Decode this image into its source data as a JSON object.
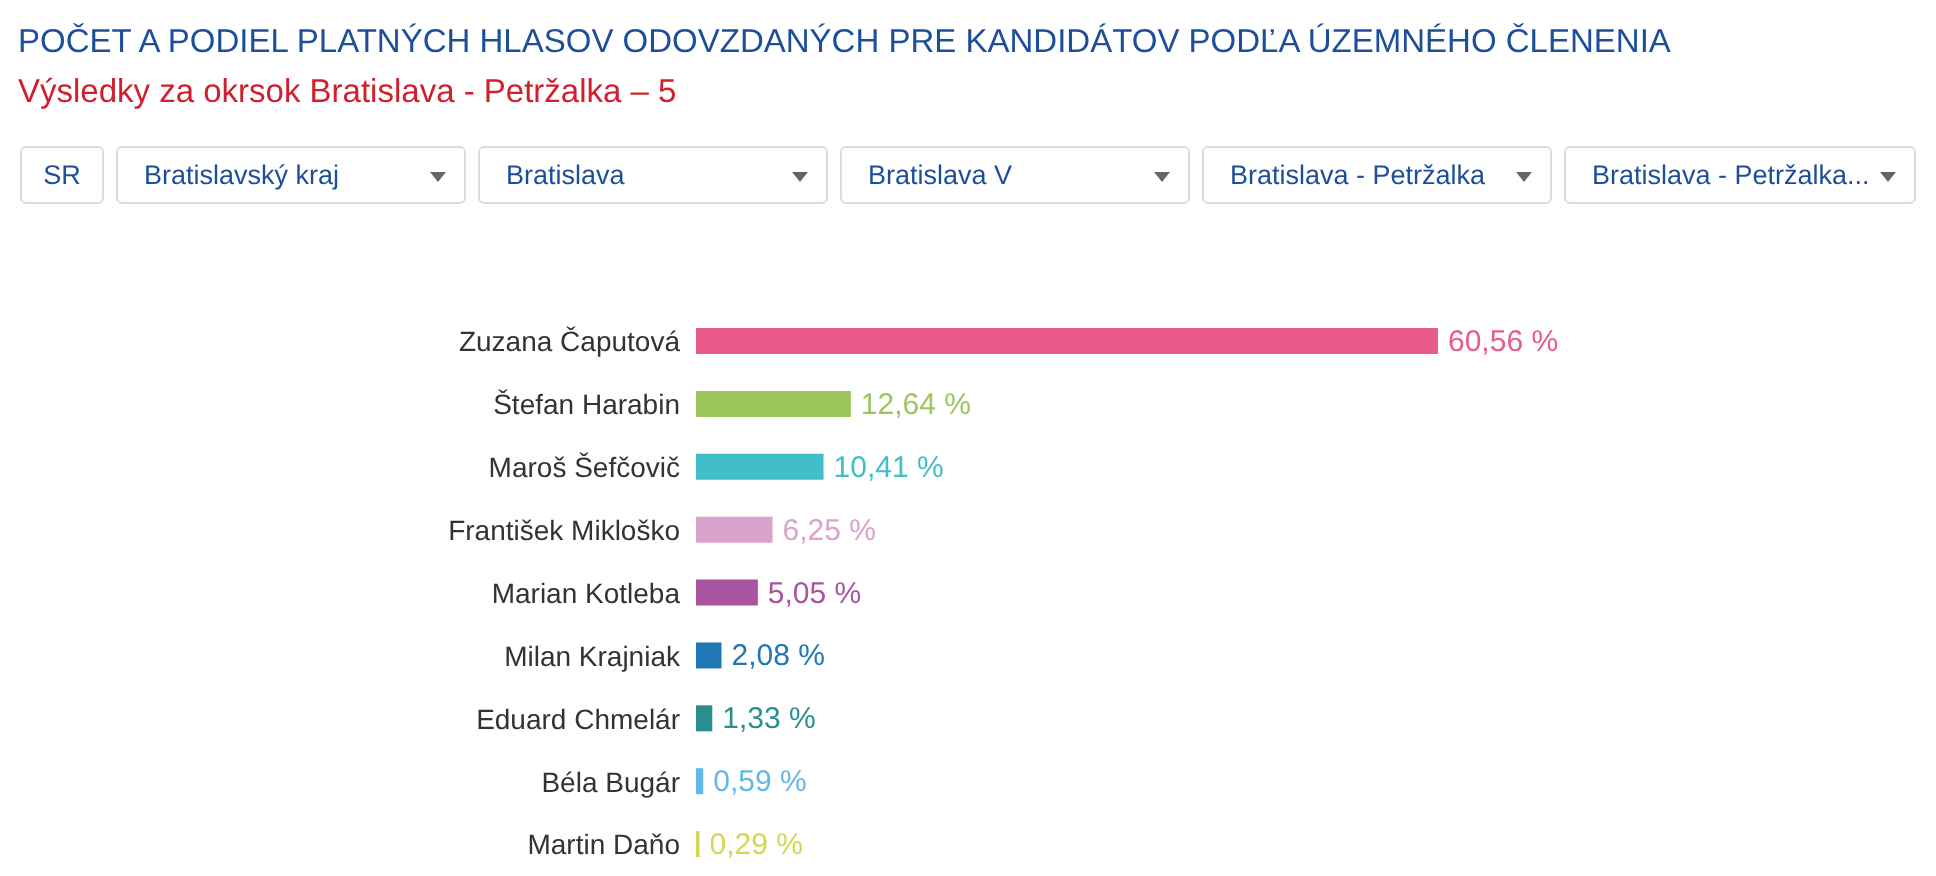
{
  "chart_data": {
    "type": "bar",
    "orientation": "horizontal",
    "title": "POČET A PODIEL PLATNÝCH HLASOV ODOVZDANÝCH PRE KANDIDÁTOV PODĽA ÚZEMNÉHO ČLENENIA",
    "subtitle": "Výsledky za okrsok Bratislava - Petržalka – 5",
    "annotations": [
      "SR",
      "Bratislavský kraj",
      "Bratislava",
      "Bratislava V",
      "Bratislava - Petržalka",
      "Bratislava - Petržalka..."
    ],
    "categories": [
      "Zuzana Čaputová",
      "Štefan Harabin",
      "Maroš Šefčovič",
      "František Mikloško",
      "Marian Kotleba",
      "Milan Krajniak",
      "Eduard Chmelár",
      "Béla Bugár",
      "Martin Daňo"
    ],
    "values": [
      60.56,
      12.64,
      10.41,
      6.25,
      5.05,
      2.08,
      1.33,
      0.59,
      0.29
    ],
    "colors": [
      "#e95b8c",
      "#9dc65c",
      "#41bfc8",
      "#d9a3cb",
      "#a9549f",
      "#1f78b4",
      "#2b8f91",
      "#63b8e6",
      "#d5d84f"
    ],
    "value_labels": [
      "60,56 %",
      "12,64 %",
      "10,41 %",
      "6,25 %",
      "5,05 %",
      "2,08 %",
      "1,33 %",
      "0,59 %",
      "0,29 %"
    ]
  }
}
